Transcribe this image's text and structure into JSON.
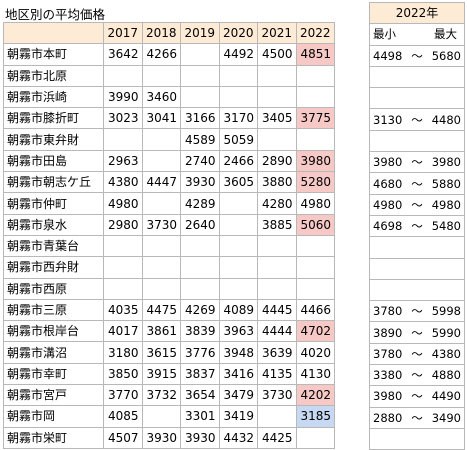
{
  "title": "地区別の平均価格",
  "years": [
    "2017",
    "2018",
    "2019",
    "2020",
    "2021",
    "2022"
  ],
  "rows": [
    {
      "name": "朝霧市本町",
      "v": [
        "3642",
        "4266",
        "",
        "4492",
        "4500",
        "4851"
      ],
      "hl": "red",
      "min": "4498",
      "max": "5680"
    },
    {
      "name": "朝霧市北原",
      "v": [
        "",
        "",
        "",
        "",
        "",
        ""
      ],
      "hl": "",
      "min": "",
      "max": ""
    },
    {
      "name": "朝霧市浜崎",
      "v": [
        "3990",
        "3460",
        "",
        "",
        "",
        ""
      ],
      "hl": "",
      "min": "",
      "max": ""
    },
    {
      "name": "朝霧市膝折町",
      "v": [
        "3023",
        "3041",
        "3166",
        "3170",
        "3405",
        "3775"
      ],
      "hl": "red",
      "min": "3130",
      "max": "4480"
    },
    {
      "name": "朝霧市東弁財",
      "v": [
        "",
        "",
        "4589",
        "5059",
        "",
        ""
      ],
      "hl": "",
      "min": "",
      "max": ""
    },
    {
      "name": "朝霧市田島",
      "v": [
        "2963",
        "",
        "2740",
        "2466",
        "2890",
        "3980"
      ],
      "hl": "red",
      "min": "3980",
      "max": "3980"
    },
    {
      "name": "朝霧市朝志ケ丘",
      "v": [
        "4380",
        "4447",
        "3930",
        "3605",
        "3880",
        "5280"
      ],
      "hl": "red",
      "min": "4680",
      "max": "5880"
    },
    {
      "name": "朝霧市仲町",
      "v": [
        "4980",
        "",
        "4289",
        "",
        "4280",
        "4980"
      ],
      "hl": "",
      "min": "4980",
      "max": "4980"
    },
    {
      "name": "朝霧市泉水",
      "v": [
        "2980",
        "3730",
        "2640",
        "",
        "3885",
        "5060"
      ],
      "hl": "red",
      "min": "4698",
      "max": "5480"
    },
    {
      "name": "朝霧市青葉台",
      "v": [
        "",
        "",
        "",
        "",
        "",
        ""
      ],
      "hl": "",
      "min": "",
      "max": ""
    },
    {
      "name": "朝霧市西弁財",
      "v": [
        "",
        "",
        "",
        "",
        "",
        ""
      ],
      "hl": "",
      "min": "",
      "max": ""
    },
    {
      "name": "朝霧市西原",
      "v": [
        "",
        "",
        "",
        "",
        "",
        ""
      ],
      "hl": "",
      "min": "",
      "max": ""
    },
    {
      "name": "朝霧市三原",
      "v": [
        "4035",
        "4475",
        "4269",
        "4089",
        "4445",
        "4466"
      ],
      "hl": "",
      "min": "3780",
      "max": "5998"
    },
    {
      "name": "朝霧市根岸台",
      "v": [
        "4017",
        "3861",
        "3839",
        "3963",
        "4444",
        "4702"
      ],
      "hl": "red",
      "min": "3890",
      "max": "5990"
    },
    {
      "name": "朝霧市溝沼",
      "v": [
        "3180",
        "3615",
        "3776",
        "3948",
        "3639",
        "4020"
      ],
      "hl": "",
      "min": "3780",
      "max": "4380"
    },
    {
      "name": "朝霧市幸町",
      "v": [
        "3850",
        "3915",
        "3837",
        "3416",
        "4135",
        "4130"
      ],
      "hl": "",
      "min": "3380",
      "max": "4880"
    },
    {
      "name": "朝霧市宮戸",
      "v": [
        "3770",
        "3732",
        "3654",
        "3479",
        "3730",
        "4202"
      ],
      "hl": "red",
      "min": "3980",
      "max": "4490"
    },
    {
      "name": "朝霧市岡",
      "v": [
        "4085",
        "",
        "3301",
        "3419",
        "",
        "3185"
      ],
      "hl": "blue",
      "min": "2880",
      "max": "3490"
    },
    {
      "name": "朝霧市栄町",
      "v": [
        "4507",
        "3930",
        "3930",
        "4432",
        "4425",
        ""
      ],
      "hl": "",
      "min": "",
      "max": ""
    }
  ],
  "range": {
    "year_label": "2022年",
    "min_label": "最小",
    "max_label": "最大",
    "sep": "～"
  },
  "colors": {
    "header_bg": "#fdebd6",
    "highlight_red": "#f7c9c6",
    "highlight_blue": "#c7d8f3",
    "grid": "#b8b8b8"
  }
}
